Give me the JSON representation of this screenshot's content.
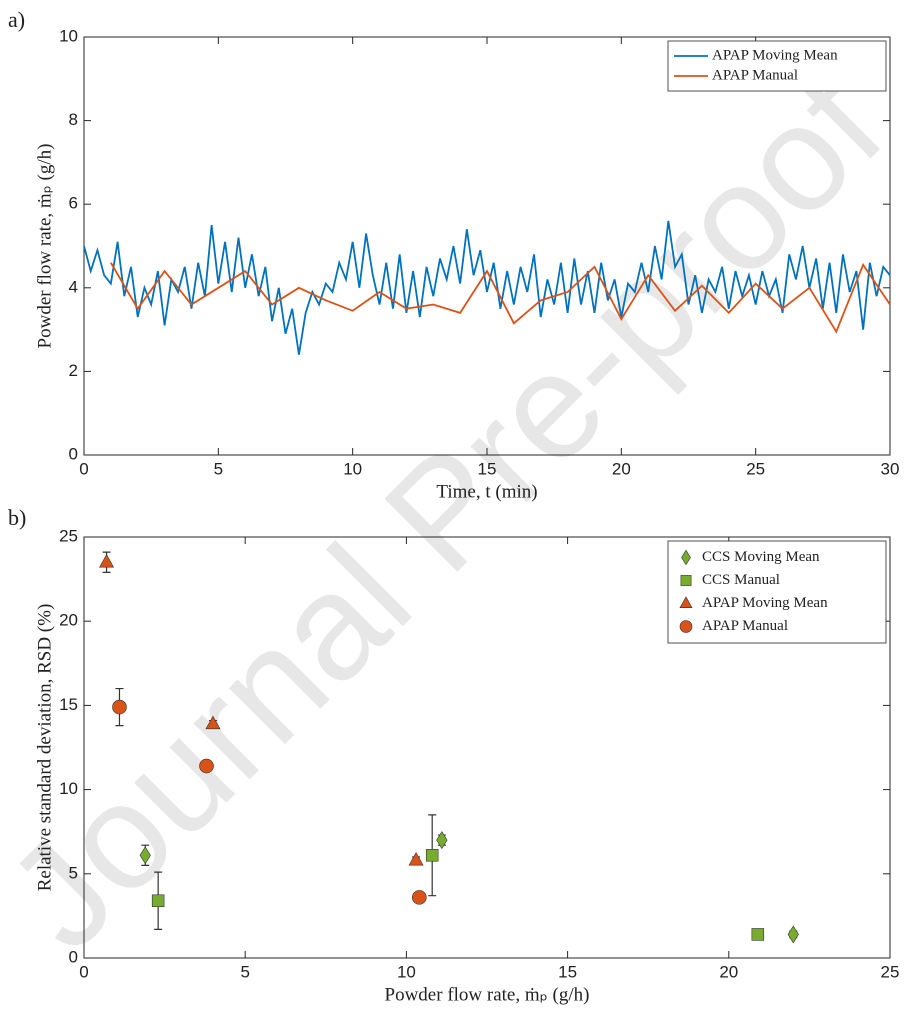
{
  "watermark": "Journal Pre-proof",
  "chart_data": [
    {
      "type": "line",
      "panel_label": "a)",
      "x_label": "Time, t (min)",
      "y_label": "Powder flow rate, ṁₚ (g/h)",
      "xlim": [
        0,
        30
      ],
      "ylim": [
        0,
        10
      ],
      "xticks": [
        0,
        5,
        10,
        15,
        20,
        25,
        30
      ],
      "yticks": [
        0,
        2,
        4,
        6,
        8,
        10
      ],
      "legend": "northeast",
      "series": [
        {
          "name": "APAP Moving Mean",
          "color": "#0072bd",
          "x": [
            0,
            0.25,
            0.5,
            0.75,
            1,
            1.25,
            1.5,
            1.75,
            2,
            2.25,
            2.5,
            2.75,
            3,
            3.25,
            3.5,
            3.75,
            4,
            4.25,
            4.5,
            4.75,
            5,
            5.25,
            5.5,
            5.75,
            6,
            6.25,
            6.5,
            6.75,
            7,
            7.25,
            7.5,
            7.75,
            8,
            8.25,
            8.5,
            8.75,
            9,
            9.25,
            9.5,
            9.75,
            10,
            10.25,
            10.5,
            10.75,
            11,
            11.25,
            11.5,
            11.75,
            12,
            12.25,
            12.5,
            12.75,
            13,
            13.25,
            13.5,
            13.75,
            14,
            14.25,
            14.5,
            14.75,
            15,
            15.25,
            15.5,
            15.75,
            16,
            16.25,
            16.5,
            16.75,
            17,
            17.25,
            17.5,
            17.75,
            18,
            18.25,
            18.5,
            18.75,
            19,
            19.25,
            19.5,
            19.75,
            20,
            20.25,
            20.5,
            20.75,
            21,
            21.25,
            21.5,
            21.75,
            22,
            22.25,
            22.5,
            22.75,
            23,
            23.25,
            23.5,
            23.75,
            24,
            24.25,
            24.5,
            24.75,
            25,
            25.25,
            25.5,
            25.75,
            26,
            26.25,
            26.5,
            26.75,
            27,
            27.25,
            27.5,
            27.75,
            28,
            28.25,
            28.5,
            28.75,
            29,
            29.25,
            29.5,
            29.75,
            30
          ],
          "values": [
            5.0,
            4.4,
            4.9,
            4.3,
            4.1,
            5.1,
            3.8,
            4.5,
            3.3,
            4.0,
            3.6,
            4.4,
            3.1,
            4.2,
            3.9,
            4.5,
            3.5,
            4.6,
            3.8,
            5.5,
            4.1,
            5.1,
            3.9,
            5.2,
            4.0,
            4.8,
            3.8,
            4.5,
            3.2,
            4.0,
            2.9,
            3.5,
            2.4,
            3.4,
            3.9,
            3.6,
            4.1,
            3.9,
            4.6,
            4.2,
            5.1,
            4.0,
            5.3,
            4.3,
            3.6,
            4.6,
            3.5,
            4.8,
            3.4,
            4.4,
            3.3,
            4.5,
            3.8,
            4.7,
            4.2,
            5.0,
            4.1,
            5.4,
            4.3,
            4.9,
            3.9,
            4.6,
            3.5,
            4.4,
            3.6,
            4.5,
            3.9,
            4.8,
            3.3,
            4.2,
            3.6,
            4.6,
            3.4,
            4.7,
            3.6,
            4.4,
            3.4,
            4.6,
            3.7,
            4.2,
            3.3,
            4.1,
            3.9,
            4.6,
            3.9,
            5.0,
            4.2,
            5.6,
            4.5,
            4.8,
            3.6,
            4.3,
            3.4,
            4.2,
            3.9,
            4.5,
            3.5,
            4.4,
            3.8,
            4.3,
            3.6,
            4.4,
            3.8,
            4.2,
            3.4,
            4.8,
            4.2,
            5.0,
            4.0,
            4.7,
            3.5,
            4.6,
            3.4,
            4.8,
            3.9,
            4.4,
            3.0,
            4.6,
            3.8,
            4.5,
            4.3
          ]
        },
        {
          "name": "APAP Manual",
          "color": "#d95319",
          "x": [
            1,
            2,
            3,
            4,
            5,
            6,
            7,
            8,
            9,
            10,
            11,
            12,
            13,
            14,
            15,
            16,
            17,
            18,
            19,
            20,
            21,
            22,
            23,
            24,
            25,
            26,
            27,
            28,
            29,
            30
          ],
          "values": [
            4.6,
            3.5,
            4.4,
            3.6,
            4.0,
            4.4,
            3.6,
            4.0,
            3.7,
            3.45,
            3.9,
            3.5,
            3.6,
            3.4,
            4.4,
            3.15,
            3.7,
            3.9,
            4.5,
            3.25,
            4.3,
            3.45,
            4.05,
            3.4,
            4.1,
            3.5,
            4.0,
            2.95,
            4.55,
            3.6
          ]
        }
      ]
    },
    {
      "type": "scatter",
      "panel_label": "b)",
      "x_label": "Powder flow rate, ṁₚ (g/h)",
      "y_label": "Relative standard deviation, RSD (%)",
      "xlim": [
        0,
        25
      ],
      "ylim": [
        0,
        25
      ],
      "xticks": [
        0,
        5,
        10,
        15,
        20,
        25
      ],
      "yticks": [
        0,
        5,
        10,
        15,
        20,
        25
      ],
      "legend": "northeast",
      "series": [
        {
          "name": "CCS Moving Mean",
          "color": "#77ac30",
          "marker": "diamond",
          "x": [
            1.9,
            11.1,
            22.0
          ],
          "values": [
            6.1,
            7.0,
            1.4
          ],
          "errors": [
            0.6,
            0.3,
            0.2
          ]
        },
        {
          "name": "CCS Manual",
          "color": "#77ac30",
          "marker": "square",
          "x": [
            2.3,
            10.8,
            20.9
          ],
          "values": [
            3.4,
            6.1,
            1.4
          ],
          "errors": [
            1.7,
            2.4,
            0.1
          ]
        },
        {
          "name": "APAP Moving Mean",
          "color": "#d95319",
          "marker": "triangle",
          "x": [
            0.7,
            4.0,
            10.3
          ],
          "values": [
            23.5,
            13.9,
            5.8
          ],
          "errors": [
            0.6,
            0.2,
            0.2
          ]
        },
        {
          "name": "APAP Manual",
          "color": "#d95319",
          "marker": "circle",
          "x": [
            1.1,
            3.8,
            10.4
          ],
          "values": [
            14.9,
            11.4,
            3.6
          ],
          "errors": [
            1.1,
            0.3,
            0.2
          ]
        }
      ]
    }
  ]
}
